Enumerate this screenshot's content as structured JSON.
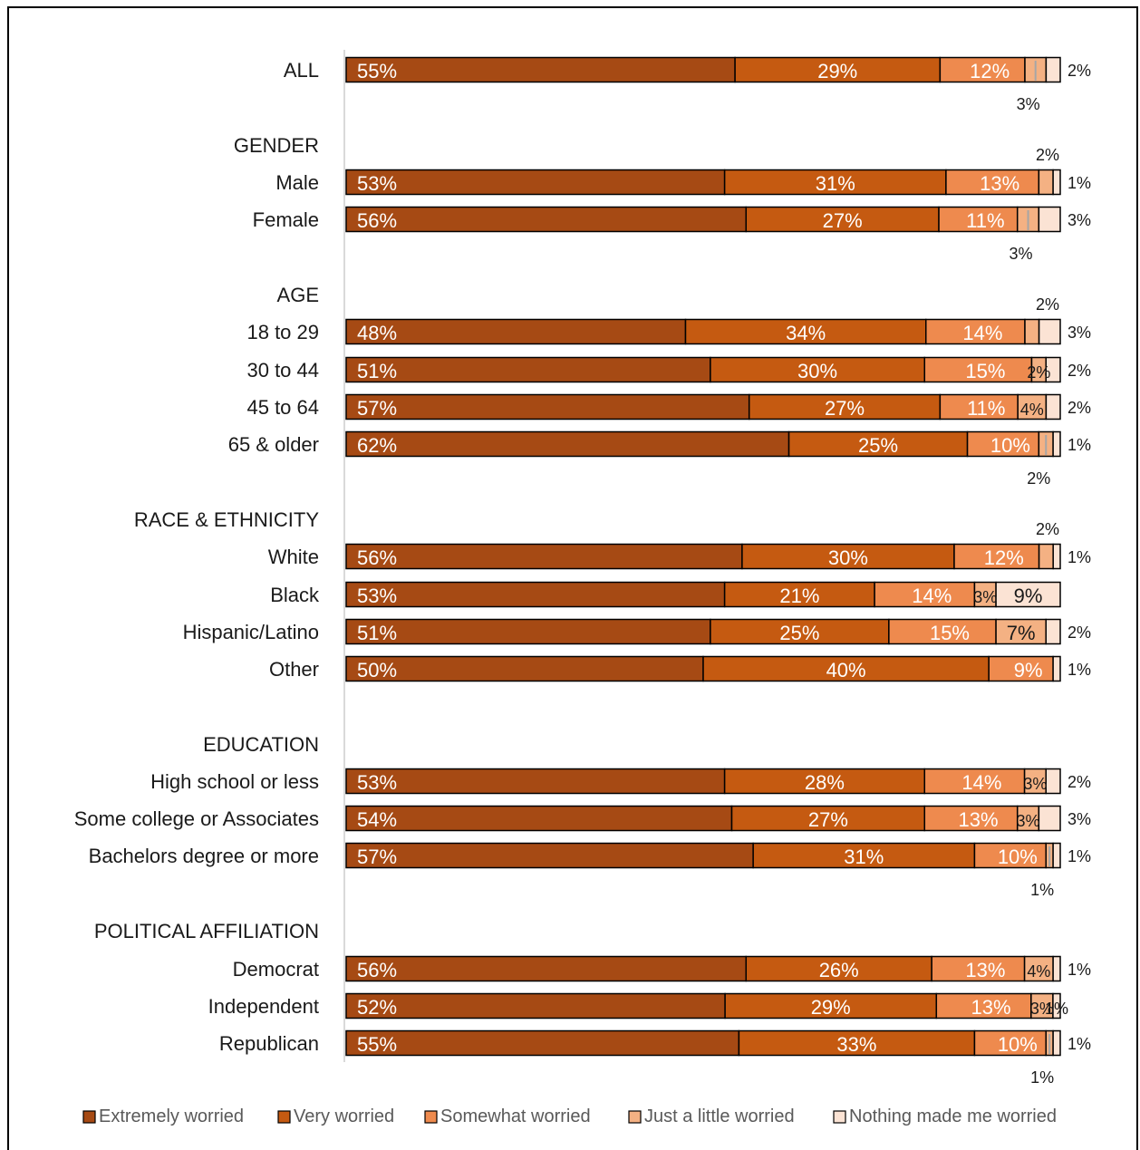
{
  "chart_data": {
    "type": "bar",
    "orientation": "horizontal",
    "stacked": true,
    "value_unit": "%",
    "xlim": [
      0,
      100
    ],
    "legend_position": "bottom",
    "series": [
      {
        "name": "Extremely worried",
        "color": "#a64a14"
      },
      {
        "name": "Very worried",
        "color": "#c55a11"
      },
      {
        "name": "Somewhat worried",
        "color": "#ee8a4e"
      },
      {
        "name": "Just a little worried",
        "color": "#f4b183"
      },
      {
        "name": "Nothing made me worried",
        "color": "#fbe3d4"
      }
    ],
    "rows": [
      {
        "type": "category",
        "label": "ALL",
        "values": [
          55,
          29,
          12,
          3,
          2
        ],
        "labels": [
          "55%",
          "29%",
          "12%",
          "",
          ""
        ],
        "above": [],
        "right": "2%",
        "below": "3%"
      },
      {
        "type": "heading",
        "label": "GENDER"
      },
      {
        "type": "category",
        "label": "Male",
        "values": [
          53,
          31,
          13,
          2,
          1
        ],
        "labels": [
          "53%",
          "31%",
          "13%",
          "",
          ""
        ],
        "above": [
          "2%"
        ],
        "right": "1%",
        "below": ""
      },
      {
        "type": "category",
        "label": "Female",
        "values": [
          56,
          27,
          11,
          3,
          3
        ],
        "labels": [
          "56%",
          "27%",
          "11%",
          "",
          ""
        ],
        "above": [],
        "right": "3%",
        "below": "3%"
      },
      {
        "type": "heading",
        "label": "AGE"
      },
      {
        "type": "category",
        "label": "18 to 29",
        "values": [
          48,
          34,
          14,
          2,
          3
        ],
        "labels": [
          "48%",
          "34%",
          "14%",
          "",
          ""
        ],
        "above": [
          "2%"
        ],
        "right": "3%",
        "below": ""
      },
      {
        "type": "category",
        "label": "30 to 44",
        "values": [
          51,
          30,
          15,
          2,
          2
        ],
        "labels": [
          "51%",
          "30%",
          "15%",
          "2%",
          ""
        ],
        "above": [],
        "right": "2%",
        "below": ""
      },
      {
        "type": "category",
        "label": "45 to 64",
        "values": [
          57,
          27,
          11,
          4,
          2
        ],
        "labels": [
          "57%",
          "27%",
          "11%",
          "4%",
          ""
        ],
        "above": [],
        "right": "2%",
        "below": ""
      },
      {
        "type": "category",
        "label": "65 & older",
        "values": [
          62,
          25,
          10,
          2,
          1
        ],
        "labels": [
          "62%",
          "25%",
          "10%",
          "",
          ""
        ],
        "above": [],
        "right": "1%",
        "below": "2%"
      },
      {
        "type": "heading",
        "label": "RACE & ETHNICITY"
      },
      {
        "type": "category",
        "label": "White",
        "values": [
          56,
          30,
          12,
          2,
          1
        ],
        "labels": [
          "56%",
          "30%",
          "12%",
          "",
          ""
        ],
        "above": [
          "2%"
        ],
        "right": "1%",
        "below": ""
      },
      {
        "type": "category",
        "label": "Black",
        "values": [
          53,
          21,
          14,
          3,
          9
        ],
        "labels": [
          "53%",
          "21%",
          "14%",
          "3%",
          "9%"
        ],
        "above": [],
        "right": "",
        "below": ""
      },
      {
        "type": "category",
        "label": "Hispanic/Latino",
        "values": [
          51,
          25,
          15,
          7,
          2
        ],
        "labels": [
          "51%",
          "25%",
          "15%",
          "7%",
          ""
        ],
        "above": [],
        "right": "2%",
        "below": ""
      },
      {
        "type": "category",
        "label": "Other",
        "values": [
          50,
          40,
          9,
          0,
          1
        ],
        "labels": [
          "50%",
          "40%",
          "9%",
          "",
          ""
        ],
        "above": [],
        "right": "1%",
        "below": ""
      },
      {
        "type": "heading",
        "label": "EDUCATION"
      },
      {
        "type": "category",
        "label": "High school or less",
        "values": [
          53,
          28,
          14,
          3,
          2
        ],
        "labels": [
          "53%",
          "28%",
          "14%",
          "3%",
          ""
        ],
        "above": [],
        "right": "2%",
        "below": ""
      },
      {
        "type": "category",
        "label": "Some college or Associates",
        "values": [
          54,
          27,
          13,
          3,
          3
        ],
        "labels": [
          "54%",
          "27%",
          "13%",
          "3%",
          ""
        ],
        "above": [],
        "right": "3%",
        "below": ""
      },
      {
        "type": "category",
        "label": "Bachelors degree or more",
        "values": [
          57,
          31,
          10,
          1,
          1
        ],
        "labels": [
          "57%",
          "31%",
          "10%",
          "",
          ""
        ],
        "above": [],
        "right": "1%",
        "below": "1%"
      },
      {
        "type": "heading",
        "label": "POLITICAL AFFILIATION"
      },
      {
        "type": "category",
        "label": "Democrat",
        "values": [
          56,
          26,
          13,
          4,
          1
        ],
        "labels": [
          "56%",
          "26%",
          "13%",
          "4%",
          ""
        ],
        "above": [],
        "right": "1%",
        "below": ""
      },
      {
        "type": "category",
        "label": "Independent",
        "values": [
          52,
          29,
          13,
          3,
          1
        ],
        "labels": [
          "52%",
          "29%",
          "13%",
          "3%",
          "1%"
        ],
        "above": [],
        "right": "",
        "below": ""
      },
      {
        "type": "category",
        "label": "Republican",
        "values": [
          55,
          33,
          10,
          1,
          1
        ],
        "labels": [
          "55%",
          "33%",
          "10%",
          "",
          ""
        ],
        "above": [],
        "right": "1%",
        "below": "1%"
      }
    ]
  }
}
